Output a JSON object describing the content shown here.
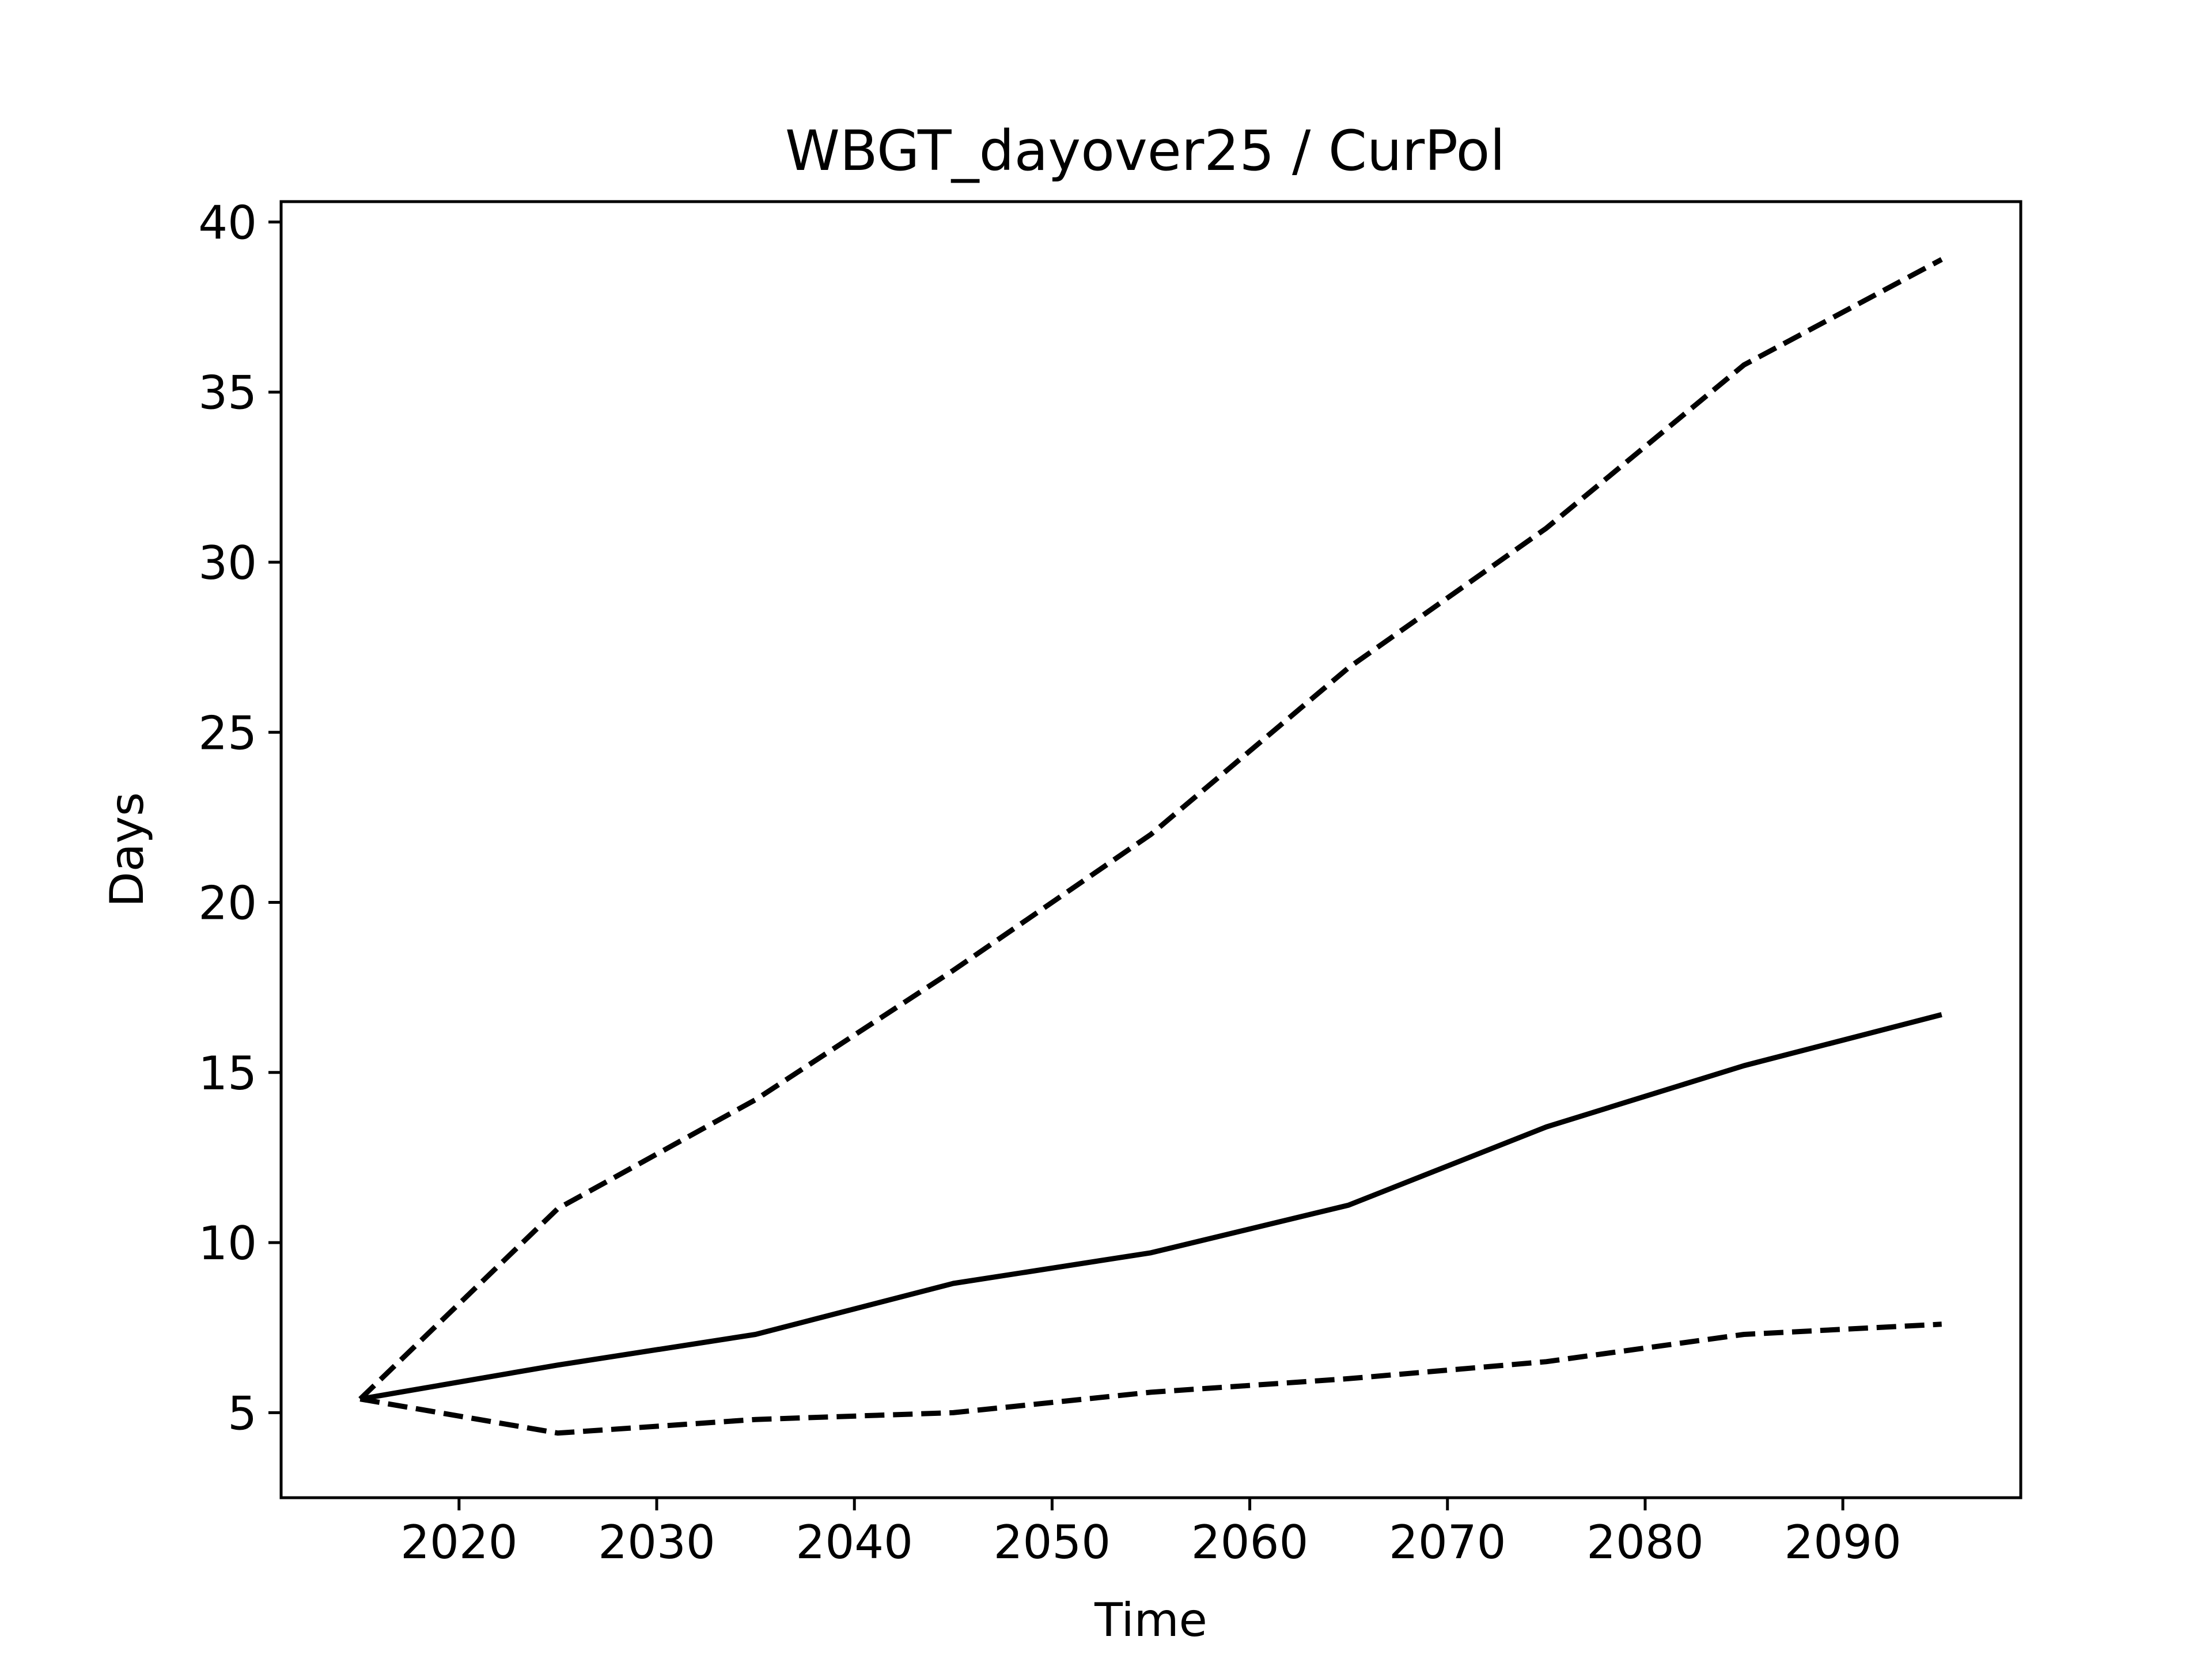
{
  "chart_data": {
    "type": "line",
    "title": "WBGT_dayover25 / CurPol",
    "xlabel": "Time",
    "ylabel": "Days",
    "xlim": [
      2011,
      2099
    ],
    "ylim": [
      2.5,
      40.6
    ],
    "xticks": [
      2020,
      2030,
      2040,
      2050,
      2060,
      2070,
      2080,
      2090
    ],
    "yticks": [
      5,
      10,
      15,
      20,
      25,
      30,
      35,
      40
    ],
    "grid": false,
    "legend": "none",
    "line_color": "#000000",
    "x": [
      2015,
      2025,
      2035,
      2045,
      2055,
      2065,
      2075,
      2085,
      2095
    ],
    "series": [
      {
        "style": "dashed",
        "values": [
          5.4,
          11.0,
          14.2,
          18.0,
          22.0,
          26.9,
          31.0,
          35.8,
          38.9
        ]
      },
      {
        "style": "solid",
        "values": [
          5.4,
          6.4,
          7.3,
          8.8,
          9.7,
          11.1,
          13.4,
          15.2,
          16.7
        ]
      },
      {
        "style": "dashed",
        "values": [
          5.4,
          4.4,
          4.8,
          5.0,
          5.6,
          6.0,
          6.5,
          7.3,
          7.6
        ]
      }
    ]
  }
}
